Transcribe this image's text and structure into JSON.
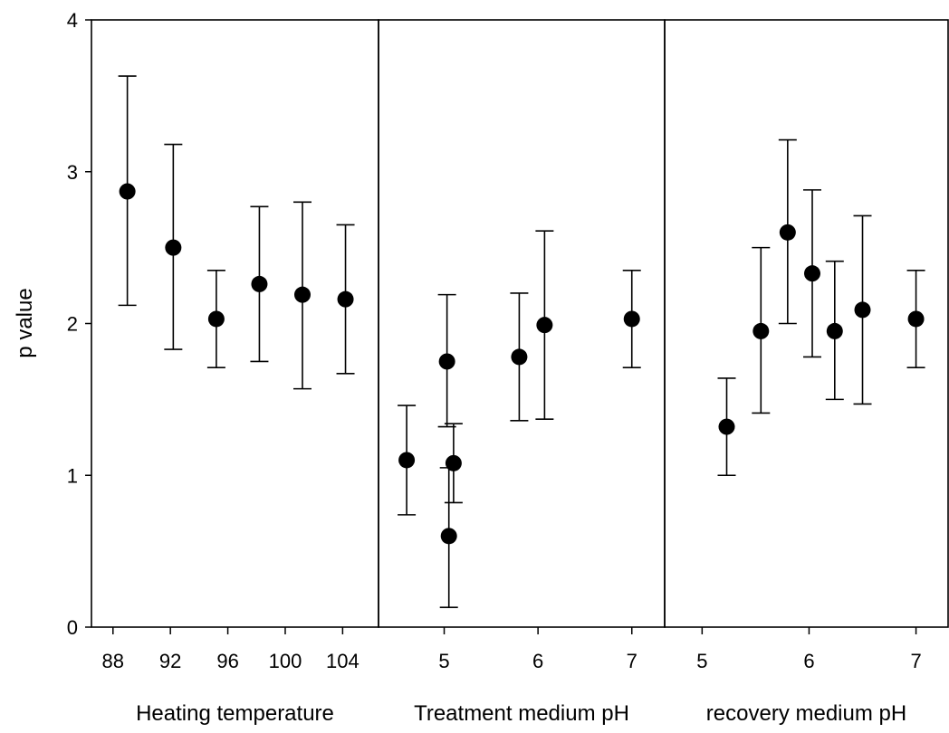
{
  "chart_data": {
    "type": "scatter",
    "ylabel": "p value",
    "ylim": [
      0,
      4
    ],
    "yticks": [
      0,
      1,
      2,
      3,
      4
    ],
    "grid": false,
    "legend": "none",
    "marker_color": "#000000",
    "panels": [
      {
        "xlabel": "Heating temperature",
        "xlim": [
          86.5,
          106.5
        ],
        "xticks": [
          88,
          92,
          96,
          100,
          104
        ],
        "points": [
          {
            "x": 89.0,
            "y": 2.87,
            "low": 2.12,
            "high": 3.63
          },
          {
            "x": 92.2,
            "y": 2.5,
            "low": 1.83,
            "high": 3.18
          },
          {
            "x": 95.2,
            "y": 2.03,
            "low": 1.71,
            "high": 2.35
          },
          {
            "x": 98.2,
            "y": 2.26,
            "low": 1.75,
            "high": 2.77
          },
          {
            "x": 101.2,
            "y": 2.19,
            "low": 1.57,
            "high": 2.8
          },
          {
            "x": 104.2,
            "y": 2.16,
            "low": 1.67,
            "high": 2.65
          }
        ]
      },
      {
        "xlabel": "Treatment medium pH",
        "xlim": [
          4.3,
          7.35
        ],
        "xticks": [
          5,
          6,
          7
        ],
        "points": [
          {
            "x": 4.6,
            "y": 1.1,
            "low": 0.74,
            "high": 1.46
          },
          {
            "x": 5.03,
            "y": 1.75,
            "low": 1.32,
            "high": 2.19
          },
          {
            "x": 5.05,
            "y": 0.6,
            "low": 0.13,
            "high": 1.05
          },
          {
            "x": 5.1,
            "y": 1.08,
            "low": 0.82,
            "high": 1.34
          },
          {
            "x": 5.8,
            "y": 1.78,
            "low": 1.36,
            "high": 2.2
          },
          {
            "x": 6.07,
            "y": 1.99,
            "low": 1.37,
            "high": 2.61
          },
          {
            "x": 7.0,
            "y": 2.03,
            "low": 1.71,
            "high": 2.35
          }
        ]
      },
      {
        "xlabel": "recovery medium pH",
        "xlim": [
          4.65,
          7.3
        ],
        "xticks": [
          5,
          6,
          7
        ],
        "points": [
          {
            "x": 5.23,
            "y": 1.32,
            "low": 1.0,
            "high": 1.64
          },
          {
            "x": 5.55,
            "y": 1.95,
            "low": 1.41,
            "high": 2.5
          },
          {
            "x": 5.8,
            "y": 2.6,
            "low": 2.0,
            "high": 3.21
          },
          {
            "x": 6.03,
            "y": 2.33,
            "low": 1.78,
            "high": 2.88
          },
          {
            "x": 6.24,
            "y": 1.95,
            "low": 1.5,
            "high": 2.41
          },
          {
            "x": 6.5,
            "y": 2.09,
            "low": 1.47,
            "high": 2.71
          },
          {
            "x": 7.0,
            "y": 2.03,
            "low": 1.71,
            "high": 2.35
          }
        ]
      }
    ]
  }
}
